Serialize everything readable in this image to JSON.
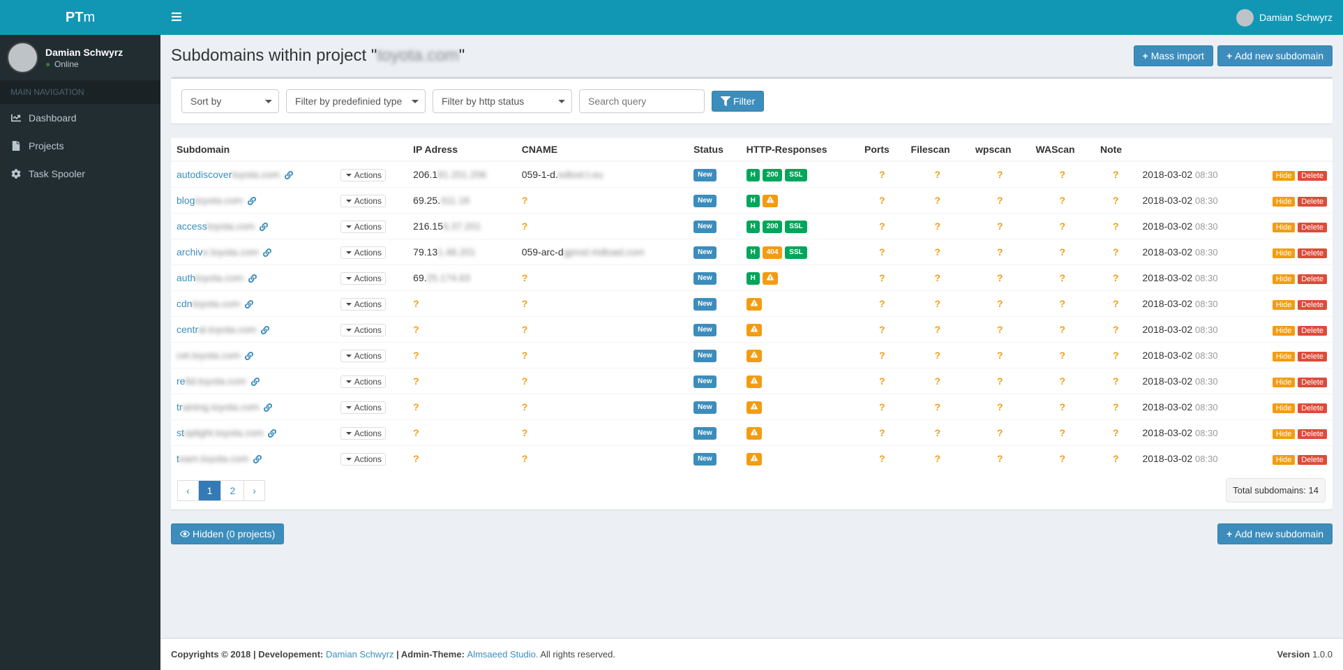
{
  "logo": {
    "bold": "PT",
    "light": "m"
  },
  "user": {
    "name": "Damian Schwyrz",
    "status": "Online"
  },
  "nav": {
    "header": "MAIN NAVIGATION",
    "items": [
      {
        "icon": "dashboard",
        "label": "Dashboard"
      },
      {
        "icon": "file",
        "label": "Projects"
      },
      {
        "icon": "cogs",
        "label": "Task Spooler"
      }
    ]
  },
  "topbar": {
    "userName": "Damian Schwyrz"
  },
  "page": {
    "titlePrefix": "Subdomains within project \"",
    "titleBlur": "toyota.com",
    "titleSuffix": "\""
  },
  "headerButtons": {
    "massImport": "Mass import",
    "addNew": "Add new subdomain"
  },
  "filters": {
    "sortBy": "Sort by",
    "filterType": "Filter by predefinied type",
    "filterHttp": "Filter by http status",
    "searchPlaceholder": "Search query",
    "filterBtn": "Filter"
  },
  "columns": [
    "Subdomain",
    "",
    "IP Adress",
    "CNAME",
    "Status",
    "HTTP-Responses",
    "Ports",
    "Filescan",
    "wpscan",
    "WAScan",
    "Note",
    "",
    ""
  ],
  "actionsLabel": "Actions",
  "hideLabel": "Hide",
  "deleteLabel": "Delete",
  "rows": [
    {
      "sub": "autodiscover",
      "subBlur": "toyota.com",
      "ip": "206.1",
      "ipBlur": "81.201.206",
      "cname": "059-1-d.",
      "cnameBlur": "edtosl.t.eu",
      "status": "New",
      "http": [
        "H",
        "200",
        "SSL"
      ],
      "date": "2018-03-02",
      "time": "08:30"
    },
    {
      "sub": "blog",
      "subBlur": "toyota.com",
      "ip": "69.25.",
      "ipBlur": "311.18",
      "cname": "?",
      "cnameBlur": "",
      "status": "New",
      "http": [
        "H",
        "warn"
      ],
      "date": "2018-03-02",
      "time": "08:30"
    },
    {
      "sub": "access",
      "subBlur": "toyota.com",
      "ip": "216.15",
      "ipBlur": "6.37.201",
      "cname": "?",
      "cnameBlur": "",
      "status": "New",
      "http": [
        "H",
        "200",
        "SSL"
      ],
      "date": "2018-03-02",
      "time": "08:30"
    },
    {
      "sub": "archiv",
      "subBlur": "e.toyota.com",
      "ip": "79.13",
      "ipBlur": "1.48.201",
      "cname": "059-arc-d",
      "cnameBlur": "gprod.mdload.com",
      "status": "New",
      "http": [
        "H",
        "404",
        "SSL"
      ],
      "date": "2018-03-02",
      "time": "08:30"
    },
    {
      "sub": "auth",
      "subBlur": "toyota.com",
      "ip": "69.",
      "ipBlur": "25.174.63",
      "cname": "?",
      "cnameBlur": "",
      "status": "New",
      "http": [
        "H",
        "warn"
      ],
      "date": "2018-03-02",
      "time": "08:30"
    },
    {
      "sub": "cdn",
      "subBlur": "toyota.com",
      "ip": "?",
      "ipBlur": "",
      "cname": "?",
      "cnameBlur": "",
      "status": "New",
      "http": [
        "warn"
      ],
      "date": "2018-03-02",
      "time": "08:30"
    },
    {
      "sub": "centr",
      "subBlur": "al.toyota.com",
      "ip": "?",
      "ipBlur": "",
      "cname": "?",
      "cnameBlur": "",
      "status": "New",
      "http": [
        "warn"
      ],
      "date": "2018-03-02",
      "time": "08:30"
    },
    {
      "sub": "",
      "subBlur": "cet.toyota.com",
      "ip": "?",
      "ipBlur": "",
      "cname": "?",
      "cnameBlur": "",
      "status": "New",
      "http": [
        "warn"
      ],
      "date": "2018-03-02",
      "time": "08:30"
    },
    {
      "sub": "re",
      "subBlur": "ltd.toyota.com",
      "ip": "?",
      "ipBlur": "",
      "cname": "?",
      "cnameBlur": "",
      "status": "New",
      "http": [
        "warn"
      ],
      "date": "2018-03-02",
      "time": "08:30"
    },
    {
      "sub": "tr",
      "subBlur": "aining.toyota.com",
      "ip": "?",
      "ipBlur": "",
      "cname": "?",
      "cnameBlur": "",
      "status": "New",
      "http": [
        "warn"
      ],
      "date": "2018-03-02",
      "time": "08:30"
    },
    {
      "sub": "st",
      "subBlur": "oplight.toyota.com",
      "ip": "?",
      "ipBlur": "",
      "cname": "?",
      "cnameBlur": "",
      "status": "New",
      "http": [
        "warn"
      ],
      "date": "2018-03-02",
      "time": "08:30"
    },
    {
      "sub": "t",
      "subBlur": "eam.toyota.com",
      "ip": "?",
      "ipBlur": "",
      "cname": "?",
      "cnameBlur": "",
      "status": "New",
      "http": [
        "warn"
      ],
      "date": "2018-03-02",
      "time": "08:30"
    }
  ],
  "pagination": {
    "prev": "‹",
    "pages": [
      "1",
      "2"
    ],
    "next": "›",
    "active": 0
  },
  "totalText": "Total subdomains: 14",
  "hiddenBtn": "Hidden (0 projects)",
  "addNewBottom": "Add new subdomain",
  "footer": {
    "copyright": "Copyrights © 2018 | Developement: ",
    "dev": "Damian Schwyrz",
    "mid": " | Admin-Theme: ",
    "theme": "Almsaeed Studio.",
    "rights": " All rights reserved.",
    "versionLabel": "Version ",
    "version": "1.0.0"
  }
}
